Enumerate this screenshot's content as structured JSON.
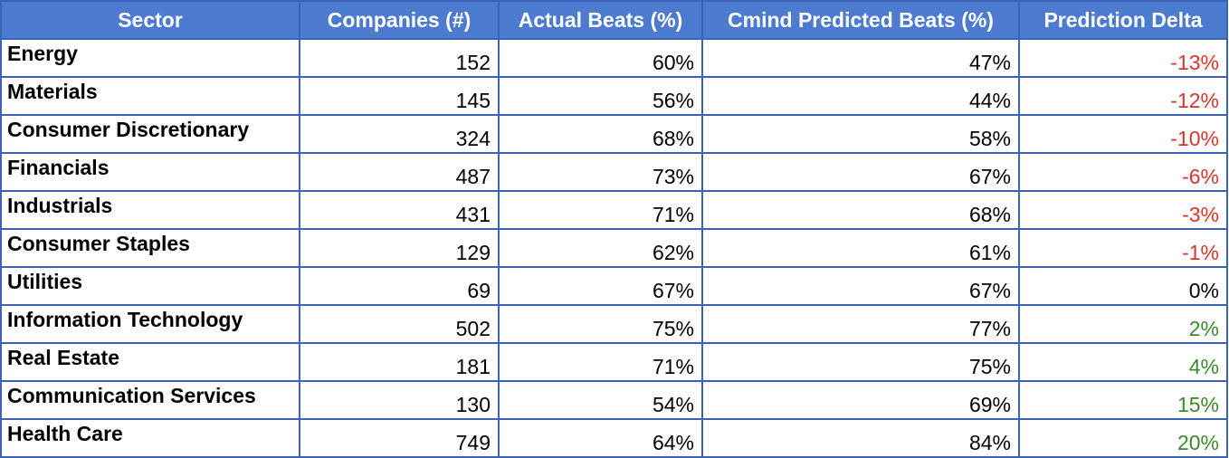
{
  "colors": {
    "header_bg": "#4d7bd0",
    "border": "#3a64b8",
    "negative": "#d9332b",
    "positive": "#3a8a2a",
    "neutral": "#000000"
  },
  "headers": [
    "Sector",
    "Companies (#)",
    "Actual Beats (%)",
    "Cmind Predicted Beats (%)",
    "Prediction Delta"
  ],
  "rows": [
    {
      "sector": "Energy",
      "companies": "152",
      "actual": "60%",
      "predicted": "47%",
      "delta": "-13%",
      "sign": "neg"
    },
    {
      "sector": "Materials",
      "companies": "145",
      "actual": "56%",
      "predicted": "44%",
      "delta": "-12%",
      "sign": "neg"
    },
    {
      "sector": "Consumer Discretionary",
      "companies": "324",
      "actual": "68%",
      "predicted": "58%",
      "delta": "-10%",
      "sign": "neg"
    },
    {
      "sector": "Financials",
      "companies": "487",
      "actual": "73%",
      "predicted": "67%",
      "delta": "-6%",
      "sign": "neg"
    },
    {
      "sector": "Industrials",
      "companies": "431",
      "actual": "71%",
      "predicted": "68%",
      "delta": "-3%",
      "sign": "neg"
    },
    {
      "sector": "Consumer Staples",
      "companies": "129",
      "actual": "62%",
      "predicted": "61%",
      "delta": "-1%",
      "sign": "neg"
    },
    {
      "sector": "Utilities",
      "companies": "69",
      "actual": "67%",
      "predicted": "67%",
      "delta": "0%",
      "sign": "zero"
    },
    {
      "sector": "Information Technology",
      "companies": "502",
      "actual": "75%",
      "predicted": "77%",
      "delta": "2%",
      "sign": "pos"
    },
    {
      "sector": "Real Estate",
      "companies": "181",
      "actual": "71%",
      "predicted": "75%",
      "delta": "4%",
      "sign": "pos"
    },
    {
      "sector": "Communication Services",
      "companies": "130",
      "actual": "54%",
      "predicted": "69%",
      "delta": "15%",
      "sign": "pos"
    },
    {
      "sector": "Health Care",
      "companies": "749",
      "actual": "64%",
      "predicted": "84%",
      "delta": "20%",
      "sign": "pos"
    }
  ]
}
